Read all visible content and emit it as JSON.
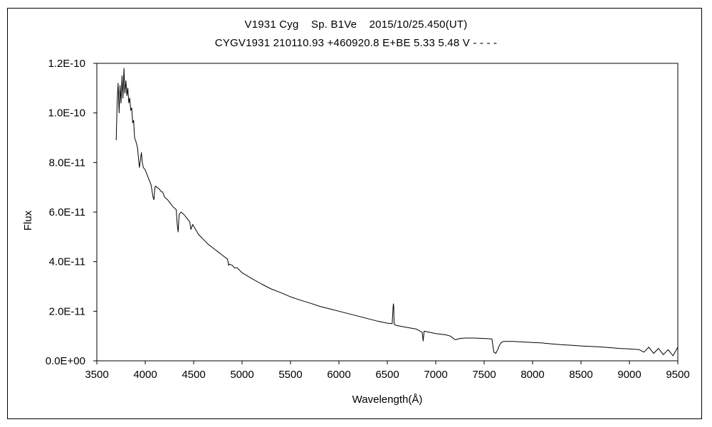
{
  "chart_data": {
    "type": "line",
    "title": "V1931 Cyg    Sp. B1Ve    2015/10/25.450(UT)",
    "subtitle": "CYGV1931 210110.93 +460920.8 E+BE 5.33 5.48 V - - - -",
    "xlabel": "Wavelength(Å)",
    "ylabel": "Flux",
    "xlim": [
      3500,
      9500
    ],
    "ylim": [
      0,
      1.2e-10
    ],
    "x_ticks": [
      3500,
      4000,
      4500,
      5000,
      5500,
      6000,
      6500,
      7000,
      7500,
      8000,
      8500,
      9000,
      9500
    ],
    "x_tick_labels": [
      "3500",
      "4000",
      "4500",
      "5000",
      "5500",
      "6000",
      "6500",
      "7000",
      "7500",
      "8000",
      "8500",
      "9000",
      "9500"
    ],
    "y_ticks": [
      0,
      2e-11,
      4e-11,
      6e-11,
      8e-11,
      1e-10,
      1.2e-10
    ],
    "y_tick_labels": [
      "0.0E+00",
      "2.0E-11",
      "4.0E-11",
      "6.0E-11",
      "8.0E-11",
      "1.0E-10",
      "1.2E-10"
    ],
    "grid": false,
    "legend": "none",
    "line_color": "#000000",
    "series": [
      {
        "x": [
          3700,
          3710,
          3720,
          3730,
          3740,
          3750,
          3760,
          3770,
          3780,
          3790,
          3800,
          3810,
          3820,
          3830,
          3840,
          3850,
          3860,
          3870,
          3880,
          3890,
          3900,
          3920,
          3940,
          3960,
          3970,
          3980,
          4000,
          4020,
          4040,
          4060,
          4080,
          4090,
          4100,
          4110,
          4120,
          4140,
          4160,
          4180,
          4200,
          4230,
          4260,
          4290,
          4320,
          4330,
          4340,
          4350,
          4370,
          4400,
          4430,
          4460,
          4471,
          4490,
          4520,
          4550,
          4600,
          4650,
          4700,
          4750,
          4800,
          4850,
          4861,
          4870,
          4900,
          4921,
          4950,
          5000,
          5100,
          5200,
          5300,
          5400,
          5500,
          5600,
          5700,
          5800,
          5900,
          6000,
          6100,
          6200,
          6300,
          6400,
          6500,
          6550,
          6560,
          6563,
          6566,
          6570,
          6580,
          6600,
          6700,
          6800,
          6860,
          6870,
          6880,
          6900,
          7000,
          7100,
          7150,
          7200,
          7250,
          7300,
          7400,
          7500,
          7580,
          7600,
          7620,
          7640,
          7660,
          7680,
          7700,
          7800,
          7900,
          8000,
          8100,
          8200,
          8300,
          8400,
          8500,
          8600,
          8700,
          8800,
          8900,
          9000,
          9100,
          9150,
          9200,
          9250,
          9300,
          9350,
          9400,
          9450,
          9500
        ],
        "y": [
          8.9e-11,
          1.05e-10,
          1.12e-10,
          1e-10,
          1.11e-10,
          1.04e-10,
          1.15e-10,
          1.06e-10,
          1.18e-10,
          1.08e-10,
          1.13e-10,
          1.07e-10,
          1.1e-10,
          1.04e-10,
          1.06e-10,
          1.01e-10,
          1.02e-10,
          9.6e-11,
          9.7e-11,
          9e-11,
          8.9e-11,
          8.6e-11,
          7.8e-11,
          8.4e-11,
          8e-11,
          7.8e-11,
          7.7e-11,
          7.5e-11,
          7.3e-11,
          7.1e-11,
          6.6e-11,
          6.5e-11,
          7e-11,
          7.05e-11,
          7e-11,
          6.95e-11,
          6.85e-11,
          6.8e-11,
          6.6e-11,
          6.5e-11,
          6.35e-11,
          6.2e-11,
          6.1e-11,
          5.5e-11,
          5.2e-11,
          5.9e-11,
          6e-11,
          5.9e-11,
          5.75e-11,
          5.6e-11,
          5.3e-11,
          5.5e-11,
          5.3e-11,
          5.1e-11,
          4.9e-11,
          4.7e-11,
          4.55e-11,
          4.4e-11,
          4.25e-11,
          4.1e-11,
          3.85e-11,
          3.9e-11,
          3.85e-11,
          3.75e-11,
          3.75e-11,
          3.55e-11,
          3.32e-11,
          3.1e-11,
          2.9e-11,
          2.75e-11,
          2.58e-11,
          2.45e-11,
          2.33e-11,
          2.2e-11,
          2.1e-11,
          2e-11,
          1.9e-11,
          1.8e-11,
          1.7e-11,
          1.6e-11,
          1.52e-11,
          1.5e-11,
          2.2e-11,
          2.3e-11,
          2.2e-11,
          1.48e-11,
          1.45e-11,
          1.42e-11,
          1.35e-11,
          1.28e-11,
          1.15e-11,
          8e-12,
          1.2e-11,
          1.18e-11,
          1.1e-11,
          1.05e-11,
          1e-11,
          8.5e-12,
          9e-12,
          9.2e-12,
          9.2e-12,
          9e-12,
          8.8e-12,
          3.5e-12,
          3e-12,
          4.5e-12,
          6.5e-12,
          7.5e-12,
          7.8e-12,
          7.8e-12,
          7.6e-12,
          7.4e-12,
          7.2e-12,
          6.8e-12,
          6.5e-12,
          6.3e-12,
          6e-12,
          5.8e-12,
          5.6e-12,
          5.3e-12,
          5e-12,
          4.8e-12,
          4.5e-12,
          3.5e-12,
          5.5e-12,
          3e-12,
          5e-12,
          2.5e-12,
          4.5e-12,
          2e-12,
          5.5e-12
        ]
      }
    ]
  }
}
